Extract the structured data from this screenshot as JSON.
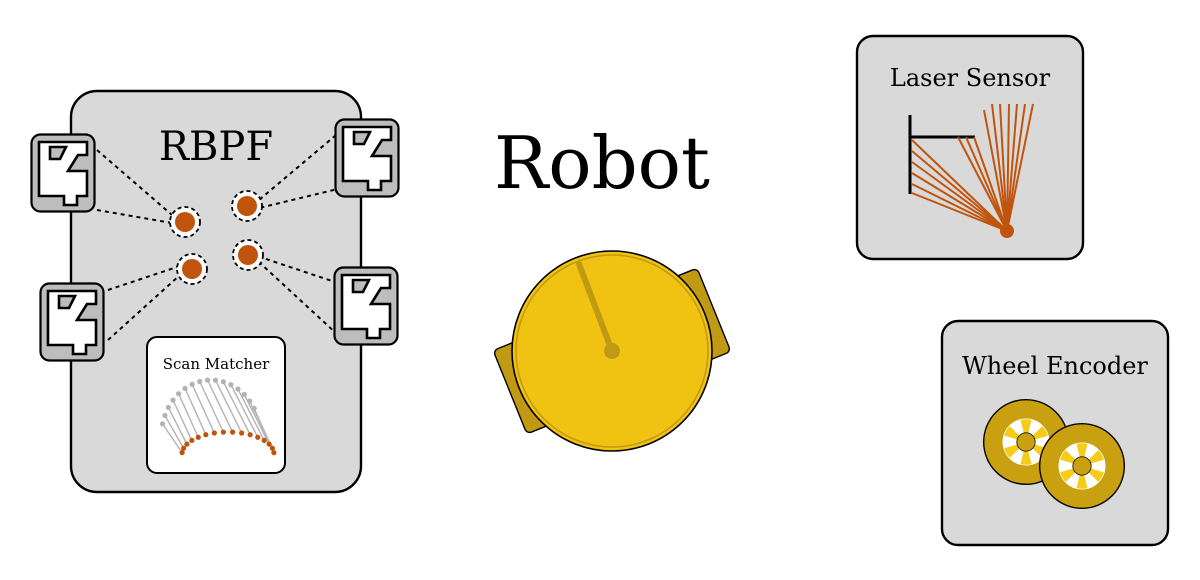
{
  "title": "Robot",
  "rbpf": {
    "label": "RBPF",
    "scan_matcher_label": "Scan Matcher"
  },
  "laser_sensor": {
    "label": "Laser Sensor"
  },
  "wheel_encoder": {
    "label": "Wheel Encoder"
  },
  "colors": {
    "panel_fill": "#d9d9d9",
    "particle": "#c1540c",
    "laser_ray": "#c1540c",
    "scan_gray": "#b3b3b3",
    "robot_body": "#f0c312",
    "robot_dark": "#c09a12",
    "wheel_outer": "#c8a010",
    "wheel_inner": "#f5cc18"
  }
}
